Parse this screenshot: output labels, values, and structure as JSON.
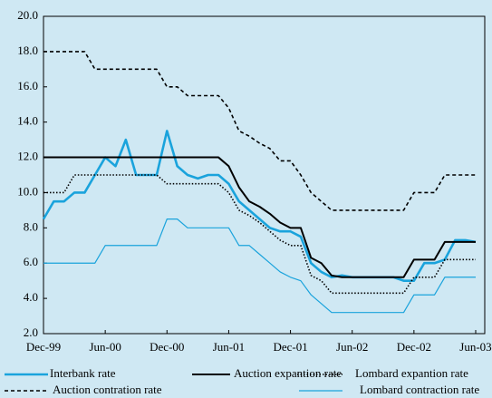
{
  "chart_data": {
    "type": "line",
    "categories": [
      "Dec-99",
      null,
      null,
      null,
      null,
      null,
      "Jun-00",
      null,
      null,
      null,
      null,
      null,
      "Dec-00",
      null,
      null,
      null,
      null,
      null,
      "Jun-01",
      null,
      null,
      null,
      null,
      null,
      "Dec-01",
      null,
      null,
      null,
      null,
      null,
      "Jun-02",
      null,
      null,
      null,
      null,
      null,
      "Dec-02",
      null,
      null,
      null,
      null,
      null,
      "Jun-03"
    ],
    "ylim": [
      2,
      20
    ],
    "yticks": [
      {
        "value": 2,
        "label": "2.0"
      },
      {
        "value": 4,
        "label": "4.0"
      },
      {
        "value": 6,
        "label": "6.0"
      },
      {
        "value": 8,
        "label": "8.0"
      },
      {
        "value": 10,
        "label": "10.0"
      },
      {
        "value": 12,
        "label": "12.0"
      },
      {
        "value": 14,
        "label": "14.0"
      },
      {
        "value": 16,
        "label": "16.0"
      },
      {
        "value": 18,
        "label": "18.0"
      },
      {
        "value": 20,
        "label": "20.0"
      }
    ],
    "grid": false,
    "legend": "bottom",
    "series": [
      {
        "name": "Interbank rate",
        "color": "#1aa3dc",
        "style": "solid",
        "values": [
          8.5,
          9.5,
          9.5,
          10,
          10,
          11,
          12,
          11.5,
          13,
          11,
          11,
          11,
          13.5,
          11.5,
          11,
          10.8,
          11,
          11,
          10.5,
          9.5,
          9.0,
          8.5,
          8.0,
          7.8,
          7.8,
          7.5,
          6.0,
          5.5,
          5.2,
          5.3,
          5.2,
          5.2,
          5.2,
          5.2,
          5.2,
          5.0,
          5.0,
          6.0,
          6.0,
          6.2,
          7.3,
          7.3,
          7.2
        ]
      },
      {
        "name": "Auction expantion rate",
        "color": "#000000",
        "style": "solid",
        "values": [
          12,
          12,
          12,
          12,
          12,
          12,
          12,
          12,
          12,
          12,
          12,
          12,
          12,
          12,
          12,
          12,
          12,
          12,
          11.5,
          10.3,
          9.5,
          9.2,
          8.8,
          8.3,
          8.0,
          8.0,
          6.3,
          6.0,
          5.3,
          5.2,
          5.2,
          5.2,
          5.2,
          5.2,
          5.2,
          5.2,
          6.2,
          6.2,
          6.2,
          7.2,
          7.2,
          7.2,
          7.2
        ]
      },
      {
        "name": "Lombard expantion rate",
        "color": "#000000",
        "style": "dotted",
        "values": [
          10,
          10,
          10,
          11,
          11,
          11,
          11,
          11,
          11,
          11,
          11,
          11,
          10.5,
          10.5,
          10.5,
          10.5,
          10.5,
          10.5,
          10.0,
          9.0,
          8.7,
          8.3,
          7.8,
          7.3,
          7.0,
          7.0,
          5.3,
          5.0,
          4.3,
          4.3,
          4.3,
          4.3,
          4.3,
          4.3,
          4.3,
          4.3,
          5.2,
          5.2,
          5.2,
          6.2,
          6.2,
          6.2,
          6.2
        ]
      },
      {
        "name": "Auction contration rate",
        "color": "#000000",
        "style": "dashed",
        "values": [
          18,
          18,
          18,
          18,
          18,
          17,
          17,
          17,
          17,
          17,
          17,
          17,
          16,
          16,
          15.5,
          15.5,
          15.5,
          15.5,
          14.8,
          13.5,
          13.2,
          12.8,
          12.5,
          11.8,
          11.8,
          11.0,
          10.0,
          9.5,
          9.0,
          9.0,
          9.0,
          9.0,
          9.0,
          9.0,
          9.0,
          9.0,
          10.0,
          10.0,
          10.0,
          11.0,
          11.0,
          11.0,
          11.0
        ]
      },
      {
        "name": "Lombard contraction rate",
        "color": "#1aa3dc",
        "style": "solid",
        "values": [
          6,
          6,
          6,
          6,
          6,
          6,
          7,
          7,
          7,
          7,
          7,
          7,
          8.5,
          8.5,
          8.0,
          8.0,
          8.0,
          8.0,
          8.0,
          7.0,
          7.0,
          6.5,
          6.0,
          5.5,
          5.2,
          5.0,
          4.2,
          3.7,
          3.2,
          3.2,
          3.2,
          3.2,
          3.2,
          3.2,
          3.2,
          3.2,
          4.2,
          4.2,
          4.2,
          5.2,
          5.2,
          5.2,
          5.2
        ]
      }
    ]
  }
}
